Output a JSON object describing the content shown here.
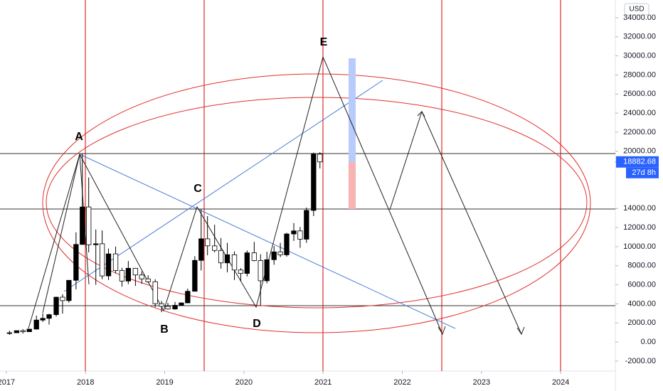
{
  "chart_data": {
    "type": "candlestick",
    "currency": "USD",
    "x": [
      2017.04,
      2017.13,
      2017.21,
      2017.29,
      2017.38,
      2017.46,
      2017.54,
      2017.63,
      2017.71,
      2017.79,
      2017.88,
      2017.96,
      2018.04,
      2018.13,
      2018.21,
      2018.29,
      2018.38,
      2018.46,
      2018.54,
      2018.63,
      2018.71,
      2018.79,
      2018.88,
      2018.96,
      2019.04,
      2019.13,
      2019.21,
      2019.29,
      2019.38,
      2019.46,
      2019.54,
      2019.63,
      2019.71,
      2019.79,
      2019.88,
      2019.96,
      2020.04,
      2020.13,
      2020.21,
      2020.29,
      2020.38,
      2020.46,
      2020.54,
      2020.63,
      2020.71,
      2020.79,
      2020.88,
      2020.96
    ],
    "open": [
      964,
      970,
      1190,
      1080,
      1350,
      2300,
      2480,
      2870,
      4700,
      4340,
      6470,
      10230,
      14160,
      10200,
      10300,
      6930,
      9240,
      7490,
      6390,
      7730,
      7030,
      6620,
      6320,
      4020,
      3740,
      3460,
      3850,
      4100,
      5320,
      8560,
      10820,
      10080,
      9600,
      8300,
      9150,
      7550,
      7190,
      9350,
      8540,
      6420,
      8630,
      9450,
      9140,
      11330,
      11650,
      10780,
      13800,
      19700
    ],
    "high": [
      1190,
      1200,
      1350,
      1350,
      2760,
      3000,
      2950,
      4750,
      5000,
      6470,
      11500,
      19800,
      17250,
      11800,
      11700,
      9800,
      10000,
      7780,
      8500,
      7770,
      7400,
      7000,
      6580,
      4300,
      4100,
      4200,
      4150,
      5600,
      9000,
      13900,
      13200,
      12300,
      10900,
      10400,
      9500,
      7750,
      9600,
      10500,
      9200,
      9460,
      10070,
      10400,
      11450,
      12470,
      12060,
      14100,
      19860,
      19900
    ],
    "low": [
      750,
      940,
      890,
      1080,
      1350,
      2100,
      1830,
      2670,
      2970,
      4130,
      5520,
      10230,
      9400,
      6000,
      6600,
      6500,
      7200,
      5800,
      6070,
      5880,
      6100,
      6200,
      3650,
      3130,
      3400,
      3390,
      3800,
      4100,
      5300,
      7500,
      9100,
      9400,
      7700,
      7300,
      6500,
      6400,
      6870,
      8450,
      3800,
      6150,
      8100,
      8900,
      8950,
      10600,
      9880,
      10400,
      13200,
      18200
    ],
    "close": [
      970,
      1190,
      1080,
      1350,
      2300,
      2480,
      2870,
      4700,
      4340,
      6470,
      10230,
      14160,
      10200,
      10300,
      6930,
      9240,
      7490,
      6390,
      7730,
      7030,
      6620,
      6320,
      4020,
      3740,
      3460,
      3850,
      4100,
      5320,
      8560,
      10820,
      10080,
      9600,
      8300,
      9150,
      7550,
      7190,
      9350,
      8540,
      6420,
      8630,
      9450,
      9140,
      11330,
      11650,
      10780,
      13800,
      19700,
      18882.68
    ],
    "up_color": "#000000",
    "down_color": "#ffffff",
    "last_price": 18882.68,
    "countdown": "27d 8h",
    "annotations": [
      "A",
      "B",
      "C",
      "D",
      "E"
    ],
    "xlim": [
      2016.92,
      2024.69
    ],
    "xticks": [
      2017,
      2018,
      2019,
      2020,
      2021,
      2022,
      2023,
      2024
    ],
    "ylim": [
      -3050,
      35860
    ],
    "yticks": [
      {
        "value": -2000,
        "label": "-2000.00"
      },
      {
        "value": 0,
        "label": "0.00"
      },
      {
        "value": 2000,
        "label": "2000.00"
      },
      {
        "value": 4000,
        "label": "4000.00"
      },
      {
        "value": 6000,
        "label": "6000.00"
      },
      {
        "value": 8000,
        "label": "8000.00"
      },
      {
        "value": 10000,
        "label": "10000.00"
      },
      {
        "value": 12000,
        "label": "12000.00"
      },
      {
        "value": 14000,
        "label": "14000.00"
      },
      {
        "value": 20000,
        "label": "20000.00"
      },
      {
        "value": 22000,
        "label": "22000.00"
      },
      {
        "value": 24000,
        "label": "24000.00"
      },
      {
        "value": 26000,
        "label": "26000.00"
      },
      {
        "value": 28000,
        "label": "28000.00"
      },
      {
        "value": 30000,
        "label": "30000.00"
      },
      {
        "value": 32000,
        "label": "32000.00"
      },
      {
        "value": 34000,
        "label": "34000.00"
      }
    ]
  }
}
